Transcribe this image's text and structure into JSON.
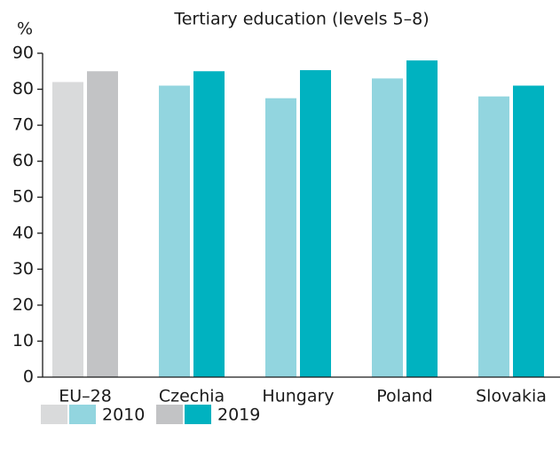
{
  "chart_data": {
    "type": "bar",
    "title": "Tertiary education (levels 5–8)",
    "ylabel": "%",
    "categories": [
      "EU–28",
      "Czechia",
      "Hungary",
      "Poland",
      "Slovakia"
    ],
    "series": [
      {
        "name": "2010",
        "colors": [
          "#d9dadb",
          "#92d5df",
          "#92d5df",
          "#92d5df",
          "#92d5df"
        ],
        "values": [
          82,
          81,
          77.5,
          83,
          78
        ]
      },
      {
        "name": "2019",
        "colors": [
          "#c2c3c5",
          "#00b2c0",
          "#00b2c0",
          "#00b2c0",
          "#00b2c0"
        ],
        "values": [
          85,
          85,
          85.3,
          88,
          81
        ]
      }
    ],
    "ylim": [
      0,
      90
    ],
    "yticks": [
      0,
      10,
      20,
      30,
      40,
      50,
      60,
      70,
      80,
      90
    ],
    "grid": false
  }
}
